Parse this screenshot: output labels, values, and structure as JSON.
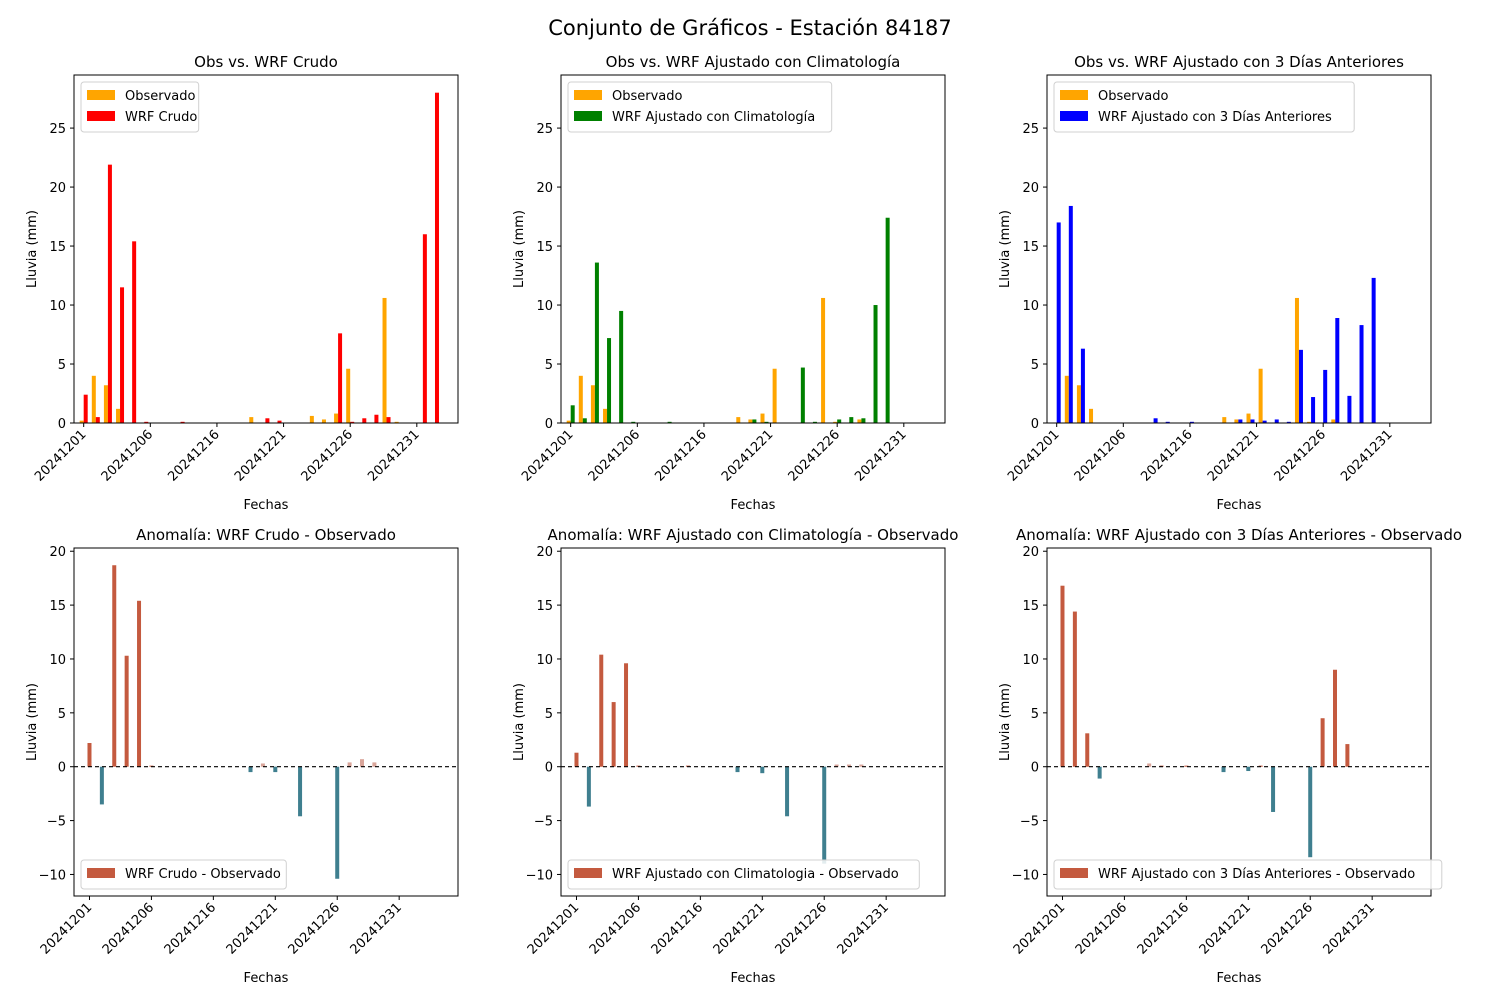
{
  "figure": {
    "title": "Conjunto de Gráficos - Estación 84187"
  },
  "colors": {
    "observado": "#FFA500",
    "wrf_crudo": "#FF0000",
    "wrf_clima": "#008000",
    "wrf_3dias": "#0000FF",
    "anomaly_positive": "#C45A3F",
    "anomaly_negative": "#3F7F8F",
    "anomaly_small_positive": "#D9A59A",
    "anomaly_small_negative": "#A9CAD3"
  },
  "chart_data": [
    {
      "type": "bar",
      "title": "Obs vs. WRF Crudo",
      "xlabel": "Fechas",
      "ylabel": "Lluvia (mm)",
      "ylim": [
        0,
        29.5
      ],
      "yticks": [
        0,
        5,
        10,
        15,
        20,
        25
      ],
      "xlim": [
        0.2,
        31.9
      ],
      "xticks": [
        {
          "x": 1,
          "label": "20241201"
        },
        {
          "x": 6.5,
          "label": "20241206"
        },
        {
          "x": 12,
          "label": "20241216"
        },
        {
          "x": 17.5,
          "label": "20241221"
        },
        {
          "x": 23,
          "label": "20241226"
        },
        {
          "x": 28.5,
          "label": "20241231"
        }
      ],
      "legend_position": "top-left",
      "x": [
        1,
        2,
        3,
        4,
        5,
        6,
        7,
        8,
        9,
        10,
        11,
        12,
        13,
        14,
        15,
        16,
        17,
        18,
        19,
        20,
        21,
        22,
        23,
        24,
        25,
        26,
        27,
        28,
        29,
        30,
        31
      ],
      "series": [
        {
          "name": "Observado",
          "color_key": "observado",
          "values": [
            0.2,
            4.0,
            3.2,
            1.2,
            0,
            0,
            0,
            0,
            0,
            0,
            0,
            0,
            0,
            0,
            0.5,
            0,
            0,
            0,
            0,
            0.6,
            0.3,
            0.8,
            4.6,
            0,
            0,
            10.6,
            0.1,
            0,
            0,
            0,
            0
          ]
        },
        {
          "name": "WRF Crudo",
          "color_key": "wrf_crudo",
          "values": [
            2.4,
            0.5,
            21.9,
            11.5,
            15.4,
            0.1,
            0,
            0,
            0.1,
            0,
            0,
            0,
            0,
            0,
            0,
            0.4,
            0.2,
            0,
            0,
            0,
            0,
            7.6,
            0.1,
            0.4,
            0.7,
            0.5,
            0,
            0,
            16.0,
            28.0,
            0
          ]
        }
      ]
    },
    {
      "type": "bar",
      "title": "Obs vs. WRF Ajustado con Climatología",
      "xlabel": "Fechas",
      "ylabel": "Lluvia (mm)",
      "ylim": [
        0,
        29.5
      ],
      "yticks": [
        0,
        5,
        10,
        15,
        20,
        25
      ],
      "xlim": [
        0.2,
        31.9
      ],
      "xticks": [
        {
          "x": 1,
          "label": "20241201"
        },
        {
          "x": 6.5,
          "label": "20241206"
        },
        {
          "x": 12,
          "label": "20241216"
        },
        {
          "x": 17.5,
          "label": "20241221"
        },
        {
          "x": 23,
          "label": "20241226"
        },
        {
          "x": 28.5,
          "label": "20241231"
        }
      ],
      "legend_position": "top-left",
      "x": [
        1,
        2,
        3,
        4,
        5,
        6,
        7,
        8,
        9,
        10,
        11,
        12,
        13,
        14,
        15,
        16,
        17,
        18,
        19,
        20,
        21,
        22,
        23,
        24,
        25,
        26,
        27,
        28,
        29,
        30,
        31
      ],
      "series": [
        {
          "name": "Observado",
          "color_key": "observado",
          "values": [
            0.2,
            4.0,
            3.2,
            1.2,
            0,
            0,
            0,
            0,
            0,
            0,
            0,
            0,
            0,
            0,
            0.5,
            0.3,
            0.8,
            4.6,
            0,
            0,
            0,
            10.6,
            0.1,
            0,
            0.3,
            0,
            0,
            0,
            0,
            0,
            0
          ]
        },
        {
          "name": "WRF Ajustado con Climatología",
          "color_key": "wrf_clima",
          "values": [
            1.5,
            0.4,
            13.6,
            7.2,
            9.5,
            0.1,
            0,
            0,
            0.1,
            0,
            0,
            0,
            0,
            0,
            0,
            0.3,
            0.1,
            0,
            0,
            4.7,
            0.1,
            0,
            0.3,
            0.5,
            0.4,
            10.0,
            17.4,
            0,
            0,
            0,
            0
          ]
        }
      ]
    },
    {
      "type": "bar",
      "title": "Obs vs. WRF Ajustado con 3 Días Anteriores",
      "xlabel": "Fechas",
      "ylabel": "Lluvia (mm)",
      "ylim": [
        0,
        29.5
      ],
      "yticks": [
        0,
        5,
        10,
        15,
        20,
        25
      ],
      "xlim": [
        0.2,
        31.9
      ],
      "xticks": [
        {
          "x": 1,
          "label": "20241201"
        },
        {
          "x": 6.5,
          "label": "20241206"
        },
        {
          "x": 12,
          "label": "20241216"
        },
        {
          "x": 17.5,
          "label": "20241221"
        },
        {
          "x": 23,
          "label": "20241226"
        },
        {
          "x": 28.5,
          "label": "20241231"
        }
      ],
      "legend_position": "top-left",
      "x": [
        1,
        2,
        3,
        4,
        5,
        6,
        7,
        8,
        9,
        10,
        11,
        12,
        13,
        14,
        15,
        16,
        17,
        18,
        19,
        20,
        21,
        22,
        23,
        24,
        25,
        26,
        27,
        28,
        29,
        30,
        31
      ],
      "series": [
        {
          "name": "Observado",
          "color_key": "observado",
          "values": [
            0,
            4.0,
            3.2,
            1.2,
            0,
            0,
            0,
            0,
            0,
            0,
            0,
            0,
            0,
            0,
            0.5,
            0.3,
            0.8,
            4.6,
            0,
            0,
            10.6,
            0.1,
            0,
            0.3,
            0,
            0,
            0,
            0,
            0,
            0,
            0
          ]
        },
        {
          "name": "WRF Ajustado con 3 Días Anteriores",
          "color_key": "wrf_3dias",
          "values": [
            17.0,
            18.4,
            6.3,
            0,
            0,
            0,
            0,
            0,
            0.4,
            0.1,
            0,
            0.1,
            0,
            0,
            0,
            0.3,
            0.3,
            0.2,
            0.3,
            0.1,
            6.2,
            2.2,
            4.5,
            8.9,
            2.3,
            8.3,
            12.3,
            0,
            0,
            0,
            0
          ]
        }
      ]
    },
    {
      "type": "bar",
      "title": "Anomalía: WRF Crudo - Observado",
      "xlabel": "Fechas",
      "ylabel": "Lluvia (mm)",
      "ylim": [
        -12.0,
        20.3
      ],
      "yticks": [
        -10,
        -5,
        0,
        5,
        10,
        15,
        20
      ],
      "xlim": [
        0,
        31
      ],
      "xticks": [
        {
          "x": 1.25,
          "label": "20241201"
        },
        {
          "x": 6.25,
          "label": "20241206"
        },
        {
          "x": 11.25,
          "label": "20241216"
        },
        {
          "x": 16.25,
          "label": "20241221"
        },
        {
          "x": 21.25,
          "label": "20241226"
        },
        {
          "x": 26.25,
          "label": "20241231"
        }
      ],
      "legend_position": "bottom-left",
      "baseline": 0,
      "x": [
        1.25,
        2.25,
        3.25,
        4.25,
        5.25,
        6.25,
        7.25,
        8.25,
        9.25,
        10.25,
        11.25,
        12.25,
        13.25,
        14.25,
        15.25,
        16.25,
        17.25,
        18.25,
        19.25,
        20.25,
        21.25,
        22.25,
        23.25,
        24.25
      ],
      "series": [
        {
          "name": "WRF Crudo - Observado",
          "values": [
            2.2,
            -3.5,
            18.7,
            10.3,
            15.4,
            0.1,
            0,
            0,
            0,
            0,
            0,
            0,
            0,
            -0.5,
            0.3,
            -0.5,
            0,
            -4.6,
            0,
            0,
            -10.4,
            0.4,
            0.7,
            0.4
          ]
        }
      ]
    },
    {
      "type": "bar",
      "title": "Anomalía: WRF Ajustado con Climatología - Observado",
      "xlabel": "Fechas",
      "ylabel": "Lluvia (mm)",
      "ylim": [
        -12.0,
        20.3
      ],
      "yticks": [
        -10,
        -5,
        0,
        5,
        10,
        15,
        20
      ],
      "xlim": [
        0,
        31
      ],
      "xticks": [
        {
          "x": 1.25,
          "label": "20241201"
        },
        {
          "x": 6.25,
          "label": "20241206"
        },
        {
          "x": 11.25,
          "label": "20241216"
        },
        {
          "x": 16.25,
          "label": "20241221"
        },
        {
          "x": 21.25,
          "label": "20241226"
        },
        {
          "x": 26.25,
          "label": "20241231"
        }
      ],
      "legend_position": "bottom-left",
      "baseline": 0,
      "x": [
        1.25,
        2.25,
        3.25,
        4.25,
        5.25,
        6.25,
        7.25,
        8.25,
        9.25,
        10.25,
        11.25,
        12.25,
        13.25,
        14.25,
        15.25,
        16.25,
        17.25,
        18.25,
        19.25,
        20.25,
        21.25,
        22.25,
        23.25,
        24.25
      ],
      "series": [
        {
          "name": "WRF Ajustado con Climatologia - Observado",
          "values": [
            1.3,
            -3.7,
            10.4,
            6.0,
            9.6,
            0.1,
            0,
            0,
            0,
            0.1,
            0,
            0,
            0,
            -0.5,
            0,
            -0.6,
            0,
            -4.6,
            0,
            0,
            -9.0,
            0.2,
            0.2,
            0.2
          ]
        }
      ]
    },
    {
      "type": "bar",
      "title": "Anomalía: WRF Ajustado con 3 Días Anteriores - Observado",
      "xlabel": "Fechas",
      "ylabel": "Lluvia (mm)",
      "ylim": [
        -12.0,
        20.3
      ],
      "yticks": [
        -10,
        -5,
        0,
        5,
        10,
        15,
        20
      ],
      "xlim": [
        0,
        31
      ],
      "xticks": [
        {
          "x": 1.25,
          "label": "20241201"
        },
        {
          "x": 6.25,
          "label": "20241206"
        },
        {
          "x": 11.25,
          "label": "20241216"
        },
        {
          "x": 16.25,
          "label": "20241221"
        },
        {
          "x": 21.25,
          "label": "20241226"
        },
        {
          "x": 26.25,
          "label": "20241231"
        }
      ],
      "legend_position": "bottom-left",
      "baseline": 0,
      "x": [
        1.25,
        2.25,
        3.25,
        4.25,
        5.25,
        6.25,
        7.25,
        8.25,
        9.25,
        10.25,
        11.25,
        12.25,
        13.25,
        14.25,
        15.25,
        16.25,
        17.25,
        18.25,
        19.25,
        20.25,
        21.25,
        22.25,
        23.25,
        24.25
      ],
      "series": [
        {
          "name": "WRF Ajustado con 3 Días Anteriores - Observado",
          "values": [
            16.8,
            14.4,
            3.1,
            -1.1,
            0,
            0,
            0,
            0.3,
            0.1,
            0,
            0.1,
            0,
            0,
            -0.5,
            0,
            -0.4,
            0.1,
            -4.2,
            0,
            0,
            -8.4,
            4.5,
            9.0,
            2.1
          ]
        }
      ]
    }
  ]
}
